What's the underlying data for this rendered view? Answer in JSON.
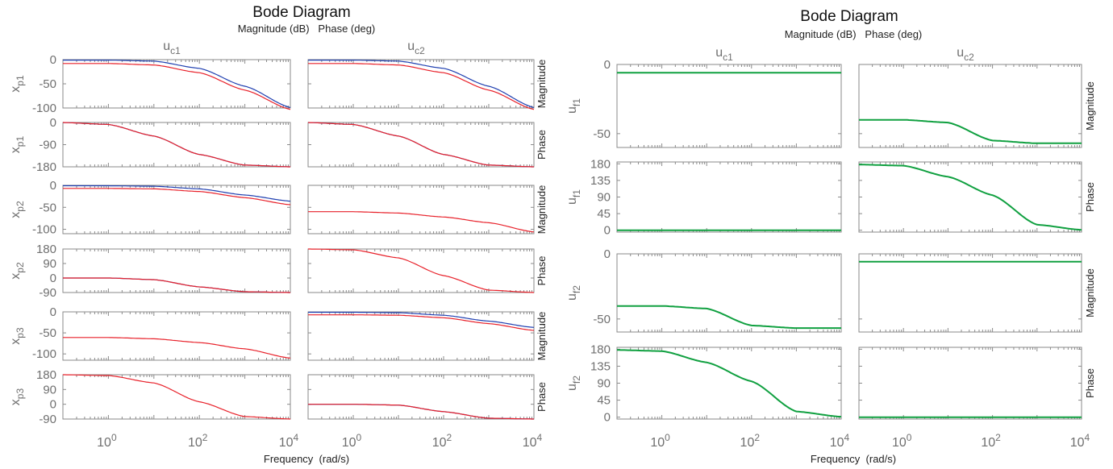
{
  "chart_data": [
    {
      "type": "line",
      "title": "Bode Diagram",
      "subtitle": "Magnitude (dB)   Phase (deg)",
      "xlabel": "Frequency  (rad/s)",
      "xscale": "log",
      "xlim": [
        0.1,
        10000
      ],
      "x_ticks": [
        {
          "base": "10",
          "exp": "0"
        },
        {
          "base": "10",
          "exp": "2"
        },
        {
          "base": "10",
          "exp": "4"
        }
      ],
      "columns": [
        {
          "base": "u",
          "sub": "c1"
        },
        {
          "base": "u",
          "sub": "c2"
        }
      ],
      "rows": [
        {
          "output": {
            "base": "x",
            "sub": "p1"
          },
          "kind": "Magnitude",
          "ylim": [
            -100,
            0
          ],
          "yticks": [
            "0",
            "-50",
            "-100"
          ]
        },
        {
          "output": {
            "base": "x",
            "sub": "p1"
          },
          "kind": "Phase",
          "ylim": [
            -180,
            0
          ],
          "yticks": [
            "0",
            "-90",
            "-180"
          ]
        },
        {
          "output": {
            "base": "x",
            "sub": "p2"
          },
          "kind": "Magnitude",
          "ylim": [
            -110,
            0
          ],
          "yticks": [
            "0",
            "-50",
            "-100"
          ]
        },
        {
          "output": {
            "base": "x",
            "sub": "p2"
          },
          "kind": "Phase",
          "ylim": [
            -90,
            180
          ],
          "yticks": [
            "180",
            "90",
            "0",
            "-90"
          ]
        },
        {
          "output": {
            "base": "x",
            "sub": "p3"
          },
          "kind": "Magnitude",
          "ylim": [
            -115,
            0
          ],
          "yticks": [
            "0",
            "-50",
            "-100"
          ]
        },
        {
          "output": {
            "base": "x",
            "sub": "p3"
          },
          "kind": "Phase",
          "ylim": [
            -90,
            180
          ],
          "yticks": [
            "180",
            "90",
            "0",
            "-90"
          ]
        }
      ],
      "series": [
        {
          "row": 0,
          "col": 0,
          "color": "#1f3fb0",
          "x": [
            0.1,
            1,
            10,
            100,
            1000,
            10000
          ],
          "y": [
            -1,
            -1,
            -3,
            -18,
            -55,
            -99
          ]
        },
        {
          "row": 0,
          "col": 0,
          "color": "#e8212a",
          "x": [
            0.1,
            1,
            10,
            100,
            1000,
            10000
          ],
          "y": [
            -8,
            -8,
            -11,
            -27,
            -63,
            -103
          ]
        },
        {
          "row": 0,
          "col": 1,
          "color": "#1f3fb0",
          "x": [
            0.1,
            1,
            10,
            100,
            1000,
            10000
          ],
          "y": [
            -1,
            -1,
            -3,
            -18,
            -55,
            -99
          ]
        },
        {
          "row": 0,
          "col": 1,
          "color": "#e8212a",
          "x": [
            0.1,
            1,
            10,
            100,
            1000,
            10000
          ],
          "y": [
            -8,
            -8,
            -11,
            -27,
            -63,
            -103
          ]
        },
        {
          "row": 1,
          "col": 0,
          "color": "#1f3fb0",
          "x": [
            0.1,
            1,
            10,
            100,
            1000,
            10000
          ],
          "y": [
            0,
            -8,
            -55,
            -130,
            -173,
            -180
          ]
        },
        {
          "row": 1,
          "col": 0,
          "color": "#e8212a",
          "x": [
            0.1,
            1,
            10,
            100,
            1000,
            10000
          ],
          "y": [
            0,
            -8,
            -55,
            -130,
            -173,
            -180
          ]
        },
        {
          "row": 1,
          "col": 1,
          "color": "#1f3fb0",
          "x": [
            0.1,
            1,
            10,
            100,
            1000,
            10000
          ],
          "y": [
            0,
            -8,
            -55,
            -130,
            -173,
            -180
          ]
        },
        {
          "row": 1,
          "col": 1,
          "color": "#e8212a",
          "x": [
            0.1,
            1,
            10,
            100,
            1000,
            10000
          ],
          "y": [
            0,
            -8,
            -55,
            -130,
            -173,
            -180
          ]
        },
        {
          "row": 2,
          "col": 0,
          "color": "#1f3fb0",
          "x": [
            0.1,
            1,
            10,
            100,
            1000,
            10000
          ],
          "y": [
            -1,
            -1,
            -2,
            -8,
            -22,
            -36
          ]
        },
        {
          "row": 2,
          "col": 0,
          "color": "#e8212a",
          "x": [
            0.1,
            1,
            10,
            100,
            1000,
            10000
          ],
          "y": [
            -7,
            -7,
            -8,
            -14,
            -28,
            -44
          ]
        },
        {
          "row": 2,
          "col": 1,
          "color": "#e8212a",
          "x": [
            0.1,
            1,
            10,
            100,
            1000,
            10000
          ],
          "y": [
            -60,
            -60,
            -63,
            -72,
            -85,
            -106
          ]
        },
        {
          "row": 3,
          "col": 0,
          "color": "#1f3fb0",
          "x": [
            0.1,
            1,
            10,
            100,
            1000,
            10000
          ],
          "y": [
            0,
            0,
            -10,
            -55,
            -85,
            -90
          ]
        },
        {
          "row": 3,
          "col": 0,
          "color": "#e8212a",
          "x": [
            0.1,
            1,
            10,
            100,
            1000,
            10000
          ],
          "y": [
            0,
            0,
            -10,
            -55,
            -85,
            -90
          ]
        },
        {
          "row": 3,
          "col": 1,
          "color": "#e8212a",
          "x": [
            0.1,
            1,
            10,
            100,
            1000,
            10000
          ],
          "y": [
            180,
            175,
            125,
            15,
            -75,
            -90
          ]
        },
        {
          "row": 4,
          "col": 0,
          "color": "#e8212a",
          "x": [
            0.1,
            1,
            10,
            100,
            1000,
            10000
          ],
          "y": [
            -61,
            -61,
            -64,
            -73,
            -88,
            -110
          ]
        },
        {
          "row": 4,
          "col": 1,
          "color": "#1f3fb0",
          "x": [
            0.1,
            1,
            10,
            100,
            1000,
            10000
          ],
          "y": [
            -1,
            -1,
            -2,
            -8,
            -22,
            -37
          ]
        },
        {
          "row": 4,
          "col": 1,
          "color": "#e8212a",
          "x": [
            0.1,
            1,
            10,
            100,
            1000,
            10000
          ],
          "y": [
            -7,
            -7,
            -8,
            -14,
            -28,
            -44
          ]
        },
        {
          "row": 5,
          "col": 0,
          "color": "#e8212a",
          "x": [
            0.1,
            1,
            10,
            100,
            1000,
            10000
          ],
          "y": [
            180,
            175,
            130,
            15,
            -75,
            -90
          ]
        },
        {
          "row": 5,
          "col": 1,
          "color": "#1f3fb0",
          "x": [
            0.1,
            1,
            10,
            100,
            1000,
            10000
          ],
          "y": [
            0,
            0,
            -5,
            -45,
            -85,
            -90
          ]
        },
        {
          "row": 5,
          "col": 1,
          "color": "#e8212a",
          "x": [
            0.1,
            1,
            10,
            100,
            1000,
            10000
          ],
          "y": [
            0,
            0,
            -5,
            -45,
            -85,
            -90
          ]
        }
      ]
    },
    {
      "type": "line",
      "title": "Bode Diagram",
      "subtitle": "Magnitude (dB)   Phase (deg)",
      "xlabel": "Frequency  (rad/s)",
      "xscale": "log",
      "xlim": [
        0.1,
        10000
      ],
      "x_ticks": [
        {
          "base": "10",
          "exp": "0"
        },
        {
          "base": "10",
          "exp": "2"
        },
        {
          "base": "10",
          "exp": "4"
        }
      ],
      "columns": [
        {
          "base": "u",
          "sub": "c1"
        },
        {
          "base": "u",
          "sub": "c2"
        }
      ],
      "rows": [
        {
          "output": {
            "base": "u",
            "sub": "f1"
          },
          "kind": "Magnitude",
          "ylim": [
            -60,
            0
          ],
          "yticks": [
            "0",
            "-50"
          ]
        },
        {
          "output": {
            "base": "u",
            "sub": "f1"
          },
          "kind": "Phase",
          "ylim": [
            -5,
            185
          ],
          "yticks": [
            "180",
            "135",
            "90",
            "45",
            "0"
          ]
        },
        {
          "output": {
            "base": "u",
            "sub": "f2"
          },
          "kind": "Magnitude",
          "ylim": [
            -60,
            0
          ],
          "yticks": [
            "0",
            "-50"
          ]
        },
        {
          "output": {
            "base": "u",
            "sub": "f2"
          },
          "kind": "Phase",
          "ylim": [
            -5,
            185
          ],
          "yticks": [
            "180",
            "135",
            "90",
            "45",
            "0"
          ]
        }
      ],
      "series": [
        {
          "row": 0,
          "col": 0,
          "color": "#10a040",
          "x": [
            0.1,
            1,
            10,
            100,
            1000,
            10000
          ],
          "y": [
            -6,
            -6,
            -6,
            -6,
            -6,
            -6
          ]
        },
        {
          "row": 0,
          "col": 1,
          "color": "#10a040",
          "x": [
            0.1,
            1,
            10,
            100,
            1000,
            10000
          ],
          "y": [
            -40,
            -40,
            -42,
            -55,
            -57,
            -57
          ]
        },
        {
          "row": 1,
          "col": 0,
          "color": "#10a040",
          "x": [
            0.1,
            1,
            10,
            100,
            1000,
            10000
          ],
          "y": [
            0,
            0,
            0,
            0,
            0,
            0
          ]
        },
        {
          "row": 1,
          "col": 1,
          "color": "#10a040",
          "x": [
            0.1,
            1,
            10,
            100,
            1000,
            10000
          ],
          "y": [
            178,
            175,
            145,
            95,
            15,
            1
          ]
        },
        {
          "row": 2,
          "col": 0,
          "color": "#10a040",
          "x": [
            0.1,
            1,
            10,
            100,
            1000,
            10000
          ],
          "y": [
            -40,
            -40,
            -42,
            -55,
            -57,
            -57
          ]
        },
        {
          "row": 2,
          "col": 1,
          "color": "#10a040",
          "x": [
            0.1,
            1,
            10,
            100,
            1000,
            10000
          ],
          "y": [
            -6,
            -6,
            -6,
            -6,
            -6,
            -6
          ]
        },
        {
          "row": 3,
          "col": 0,
          "color": "#10a040",
          "x": [
            0.1,
            1,
            10,
            100,
            1000,
            10000
          ],
          "y": [
            178,
            175,
            145,
            95,
            15,
            1
          ]
        },
        {
          "row": 3,
          "col": 1,
          "color": "#10a040",
          "x": [
            0.1,
            1,
            10,
            100,
            1000,
            10000
          ],
          "y": [
            0,
            0,
            0,
            0,
            0,
            0
          ]
        }
      ]
    }
  ]
}
